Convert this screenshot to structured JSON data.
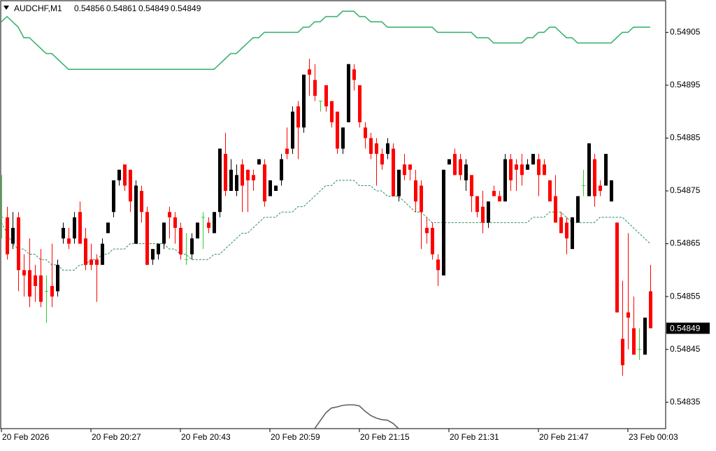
{
  "chart_data": {
    "type": "candlestick",
    "title": "AUDCHF,M1",
    "categories": [
      "20 Feb 2026",
      null,
      null,
      null,
      null,
      null,
      null,
      null,
      null,
      null,
      null,
      null,
      null,
      null,
      null,
      null,
      "20 Feb 20:27",
      null,
      null,
      null,
      null,
      null,
      null,
      null,
      null,
      null,
      null,
      null,
      null,
      null,
      null,
      null,
      "20 Feb 20:43",
      null,
      null,
      null,
      null,
      null,
      null,
      null,
      null,
      null,
      null,
      null,
      null,
      null,
      null,
      null,
      "20 Feb 20:59",
      null,
      null,
      null,
      null,
      null,
      null,
      null,
      null,
      null,
      null,
      null,
      null,
      null,
      null,
      null,
      "20 Feb 21:15",
      null,
      null,
      null,
      null,
      null,
      null,
      null,
      null,
      null,
      null,
      null,
      null,
      null,
      null,
      null,
      "20 Feb 21:31",
      null,
      null,
      null,
      null,
      null,
      null,
      null,
      null,
      null,
      null,
      null,
      null,
      null,
      null,
      null,
      "20 Feb 21:47",
      null,
      null,
      null,
      null,
      null,
      null,
      null,
      null,
      null,
      null,
      null,
      null,
      null,
      null,
      null,
      "23 Feb 00:03",
      null,
      null,
      null,
      null
    ],
    "open": [
      0.5487,
      0.5487,
      0.54865,
      0.5487,
      0.5486,
      0.5486,
      0.54859,
      0.54859,
      0.54856,
      0.54857,
      0.54856,
      0.54866,
      0.54866,
      0.54866,
      0.54871,
      0.54866,
      0.54862,
      0.54862,
      0.54861,
      0.54867,
      0.54871,
      0.54877,
      0.5488,
      0.54879,
      0.54865,
      0.54875,
      0.54871,
      0.54862,
      0.54863,
      0.54865,
      0.54871,
      0.5487,
      0.54868,
      0.54862,
      0.54863,
      0.54866,
      0.5487,
      0.54869,
      0.54867,
      0.54871,
      0.54882,
      0.54875,
      0.54875,
      0.5488,
      0.54879,
      0.54878,
      0.5488,
      0.5488,
      0.54874,
      0.54875,
      0.54877,
      0.54883,
      0.54883,
      0.54891,
      0.54887,
      0.54898,
      0.54896,
      0.54892,
      0.54895,
      0.54892,
      0.5489,
      0.54883,
      0.54888,
      0.54898,
      0.54895,
      0.54887,
      0.54885,
      0.54884,
      0.54882,
      0.54882,
      0.54883,
      0.54874,
      0.5488,
      0.5488,
      0.54877,
      0.54876,
      0.54868,
      0.54868,
      0.54862,
      0.54859,
      0.5488,
      0.54882,
      0.54881,
      0.54877,
      0.54878,
      0.54874,
      0.54872,
      0.54869,
      0.54875,
      0.54874,
      0.54873,
      0.54881,
      0.5488,
      0.5488,
      0.54879,
      0.5488,
      0.54881,
      0.5488,
      0.54877,
      0.54874,
      0.5487,
      0.54869,
      0.54864,
      0.54869,
      0.54876,
      0.54874,
      0.54881,
      0.54876,
      0.54876,
      0.54873,
      0.54869,
      0.54847,
      0.54852,
      0.54849,
      0.54845,
      0.54844,
      0.54856
    ],
    "high": [
      0.54878,
      0.54872,
      0.54871,
      0.54871,
      0.54863,
      0.54866,
      0.54861,
      0.54864,
      0.54859,
      0.54865,
      0.54862,
      0.54869,
      0.54868,
      0.54871,
      0.54873,
      0.54868,
      0.54865,
      0.54863,
      0.54866,
      0.54869,
      0.54877,
      0.54879,
      0.5488,
      0.54879,
      0.54877,
      0.54876,
      0.54872,
      0.54864,
      0.54865,
      0.54869,
      0.54872,
      0.54871,
      0.54869,
      0.54867,
      0.54867,
      0.54869,
      0.54871,
      0.5487,
      0.54871,
      0.54883,
      0.54886,
      0.54881,
      0.5488,
      0.54881,
      0.54879,
      0.54879,
      0.54881,
      0.54881,
      0.54877,
      0.54876,
      0.54882,
      0.54887,
      0.54891,
      0.54892,
      0.54897,
      0.549,
      0.54899,
      0.54892,
      0.54895,
      0.54892,
      0.5489,
      0.54887,
      0.54899,
      0.54899,
      0.54895,
      0.54888,
      0.54886,
      0.54885,
      0.54883,
      0.54885,
      0.54884,
      0.54879,
      0.54882,
      0.5488,
      0.54879,
      0.54877,
      0.5487,
      0.54869,
      0.54863,
      0.54879,
      0.54881,
      0.54883,
      0.54882,
      0.54881,
      0.54878,
      0.54874,
      0.54875,
      0.54873,
      0.54876,
      0.54875,
      0.54882,
      0.54882,
      0.54881,
      0.54882,
      0.54881,
      0.54882,
      0.54882,
      0.54881,
      0.54877,
      0.54878,
      0.54871,
      0.5487,
      0.5487,
      0.54874,
      0.54879,
      0.54884,
      0.54882,
      0.54877,
      0.54882,
      0.54877,
      0.54869,
      0.54858,
      0.54867,
      0.54855,
      0.54849,
      0.54851,
      0.54861
    ],
    "low": [
      0.54866,
      0.54862,
      0.54864,
      0.54856,
      0.54855,
      0.54853,
      0.54854,
      0.54853,
      0.5485,
      0.54853,
      0.54855,
      0.54865,
      0.54864,
      0.54865,
      0.54865,
      0.5486,
      0.5486,
      0.54854,
      0.54861,
      0.54867,
      0.5487,
      0.54876,
      0.54875,
      0.54871,
      0.54865,
      0.54869,
      0.54861,
      0.54861,
      0.54862,
      0.54864,
      0.54866,
      0.54865,
      0.54862,
      0.54861,
      0.54862,
      0.54866,
      0.54864,
      0.54867,
      0.54867,
      0.5487,
      0.54874,
      0.54875,
      0.54874,
      0.54871,
      0.54871,
      0.54875,
      0.5488,
      0.54872,
      0.54874,
      0.54875,
      0.54876,
      0.54881,
      0.54882,
      0.54881,
      0.54886,
      0.54893,
      0.54892,
      0.5489,
      0.5489,
      0.54887,
      0.54882,
      0.54882,
      0.54888,
      0.54894,
      0.54887,
      0.54883,
      0.54881,
      0.54876,
      0.54879,
      0.54881,
      0.54874,
      0.54873,
      0.54877,
      0.54877,
      0.54871,
      0.54864,
      0.54865,
      0.54862,
      0.54857,
      0.54859,
      0.5488,
      0.54878,
      0.54877,
      0.54875,
      0.54871,
      0.5487,
      0.54867,
      0.54868,
      0.54874,
      0.54873,
      0.54873,
      0.54875,
      0.54875,
      0.54876,
      0.54879,
      0.5488,
      0.54874,
      0.54878,
      0.54873,
      0.54869,
      0.54867,
      0.54863,
      0.54864,
      0.54869,
      0.54874,
      0.54874,
      0.54872,
      0.54874,
      0.54876,
      0.54873,
      0.54852,
      0.5484,
      0.54845,
      0.54844,
      0.54843,
      0.54844,
      0.54849
    ],
    "close": [
      0.5487,
      0.54863,
      0.54868,
      0.5486,
      0.54859,
      0.54855,
      0.54857,
      0.54854,
      0.54856,
      0.54855,
      0.54861,
      0.54868,
      0.54865,
      0.5487,
      0.54865,
      0.54861,
      0.54861,
      0.54861,
      0.54865,
      0.54869,
      0.54877,
      0.54879,
      0.54876,
      0.54873,
      0.54876,
      0.54871,
      0.54861,
      0.54864,
      0.54865,
      0.54869,
      0.5487,
      0.54868,
      0.54863,
      0.54862,
      0.54866,
      0.54869,
      0.5487,
      0.54868,
      0.54871,
      0.54883,
      0.54875,
      0.54879,
      0.54878,
      0.54876,
      0.54877,
      0.54877,
      0.54881,
      0.54873,
      0.54877,
      0.54876,
      0.54881,
      0.54882,
      0.5489,
      0.54887,
      0.54897,
      0.54897,
      0.54893,
      0.54892,
      0.54891,
      0.54888,
      0.54883,
      0.54887,
      0.54899,
      0.54896,
      0.54888,
      0.54885,
      0.54882,
      0.54882,
      0.5488,
      0.54884,
      0.54874,
      0.54879,
      0.54878,
      0.54879,
      0.54873,
      0.54871,
      0.54867,
      0.54863,
      0.5486,
      0.54879,
      0.54881,
      0.54878,
      0.54878,
      0.5488,
      0.54874,
      0.54871,
      0.54869,
      0.54873,
      0.54874,
      0.54873,
      0.54881,
      0.54877,
      0.54879,
      0.54878,
      0.5488,
      0.54882,
      0.54878,
      0.54878,
      0.54873,
      0.54869,
      0.54867,
      0.54866,
      0.5487,
      0.54874,
      0.54876,
      0.54884,
      0.54874,
      0.54875,
      0.54882,
      0.54877,
      0.54852,
      0.54842,
      0.54851,
      0.54844,
      0.54845,
      0.54851,
      0.54849
    ],
    "up_color": "#000000",
    "down_color": "#ff0000",
    "doji_color": "#32cd32",
    "lines": [
      {
        "color": "#3cb371",
        "style": "solid",
        "values": [
          0.54907,
          0.54908,
          0.54907,
          0.54906,
          0.54904,
          0.54904,
          0.54903,
          0.54902,
          0.54901,
          0.54901,
          0.549,
          0.54899,
          0.54898,
          0.54898,
          0.54898,
          0.54898,
          0.54898,
          0.54898,
          0.54898,
          0.54898,
          0.54898,
          0.54898,
          0.54898,
          0.54898,
          0.54898,
          0.54898,
          0.54898,
          0.54898,
          0.54898,
          0.54898,
          0.54898,
          0.54898,
          0.54898,
          0.54898,
          0.54898,
          0.54898,
          0.54898,
          0.54898,
          0.54898,
          0.54899,
          0.549,
          0.54901,
          0.54901,
          0.54902,
          0.54903,
          0.54904,
          0.54904,
          0.54905,
          0.54905,
          0.54905,
          0.54905,
          0.54905,
          0.54905,
          0.54905,
          0.54906,
          0.54906,
          0.54907,
          0.54907,
          0.54908,
          0.54908,
          0.54908,
          0.54909,
          0.54909,
          0.54909,
          0.54908,
          0.54908,
          0.54907,
          0.54907,
          0.54907,
          0.54906,
          0.54906,
          0.54906,
          0.54906,
          0.54906,
          0.54906,
          0.54906,
          0.54906,
          0.54906,
          0.54905,
          0.54905,
          0.54905,
          0.54905,
          0.54905,
          0.54905,
          0.54905,
          0.54904,
          0.54904,
          0.54904,
          0.54903,
          0.54903,
          0.54903,
          0.54903,
          0.54903,
          0.54903,
          0.54904,
          0.54904,
          0.54905,
          0.54905,
          0.54906,
          0.54906,
          0.54905,
          0.54904,
          0.54904,
          0.54903,
          0.54903,
          0.54903,
          0.54903,
          0.54903,
          0.54903,
          0.54903,
          0.54904,
          0.54905,
          0.54905,
          0.54906,
          0.54906,
          0.54906,
          0.54906
        ]
      },
      {
        "color": "#2e8b57",
        "style": "dashed",
        "values": [
          0.54869,
          0.54867,
          0.54865,
          0.54864,
          0.54864,
          0.54863,
          0.54863,
          0.54862,
          0.54862,
          0.54861,
          0.54861,
          0.5486,
          0.5486,
          0.5486,
          0.54861,
          0.54861,
          0.54862,
          0.54862,
          0.54863,
          0.54863,
          0.54864,
          0.54864,
          0.54864,
          0.54865,
          0.54865,
          0.54865,
          0.54865,
          0.54865,
          0.54865,
          0.54865,
          0.54864,
          0.54864,
          0.54863,
          0.54863,
          0.54862,
          0.54862,
          0.54862,
          0.54862,
          0.54863,
          0.54863,
          0.54864,
          0.54865,
          0.54866,
          0.54867,
          0.54867,
          0.54868,
          0.54869,
          0.5487,
          0.5487,
          0.5487,
          0.54871,
          0.54871,
          0.54871,
          0.54872,
          0.54872,
          0.54873,
          0.54874,
          0.54875,
          0.54876,
          0.54876,
          0.54877,
          0.54877,
          0.54877,
          0.54877,
          0.54876,
          0.54876,
          0.54876,
          0.54875,
          0.54875,
          0.54874,
          0.54874,
          0.54874,
          0.54873,
          0.54872,
          0.54871,
          0.54871,
          0.5487,
          0.54869,
          0.54869,
          0.54869,
          0.54869,
          0.54869,
          0.54869,
          0.54869,
          0.54869,
          0.54869,
          0.54869,
          0.54869,
          0.54869,
          0.54869,
          0.54869,
          0.54869,
          0.54869,
          0.54869,
          0.54869,
          0.5487,
          0.5487,
          0.5487,
          0.54871,
          0.54871,
          0.54871,
          0.5487,
          0.54869,
          0.54869,
          0.54869,
          0.54869,
          0.54869,
          0.5487,
          0.5487,
          0.5487,
          0.5487,
          0.5487,
          0.54869,
          0.54868,
          0.54867,
          0.54866,
          0.54865
        ]
      },
      {
        "color": "#606060",
        "style": "solid",
        "values": [
          null,
          null,
          null,
          null,
          null,
          null,
          null,
          null,
          null,
          null,
          null,
          null,
          null,
          null,
          null,
          null,
          null,
          null,
          null,
          null,
          null,
          null,
          null,
          null,
          null,
          null,
          null,
          null,
          null,
          null,
          null,
          null,
          null,
          null,
          null,
          null,
          null,
          null,
          null,
          null,
          null,
          null,
          null,
          null,
          null,
          null,
          null,
          null,
          null,
          null,
          null,
          null,
          null,
          null,
          null,
          null,
          0.5483,
          0.548315,
          0.54833,
          0.548339,
          0.548341,
          0.548344,
          0.548345,
          0.548345,
          0.548343,
          0.548333,
          0.548325,
          0.54832,
          0.548317,
          0.548316,
          0.54831,
          0.5483,
          null,
          null,
          null,
          null,
          null,
          null,
          null,
          null,
          null,
          null,
          null,
          null,
          null,
          null,
          null,
          null,
          null,
          null,
          null,
          null,
          null,
          null,
          null,
          null,
          null,
          null,
          null,
          null,
          null,
          null,
          null,
          null,
          null,
          null,
          null,
          null,
          null,
          null,
          null,
          null,
          null,
          null,
          null,
          null,
          null
        ]
      }
    ],
    "ylim": [
      0.5483,
      0.54911
    ],
    "yticks": [
      0.54835,
      0.54845,
      0.54855,
      0.54865,
      0.54875,
      0.54885,
      0.54895,
      0.54905
    ],
    "grid": false
  }
}
